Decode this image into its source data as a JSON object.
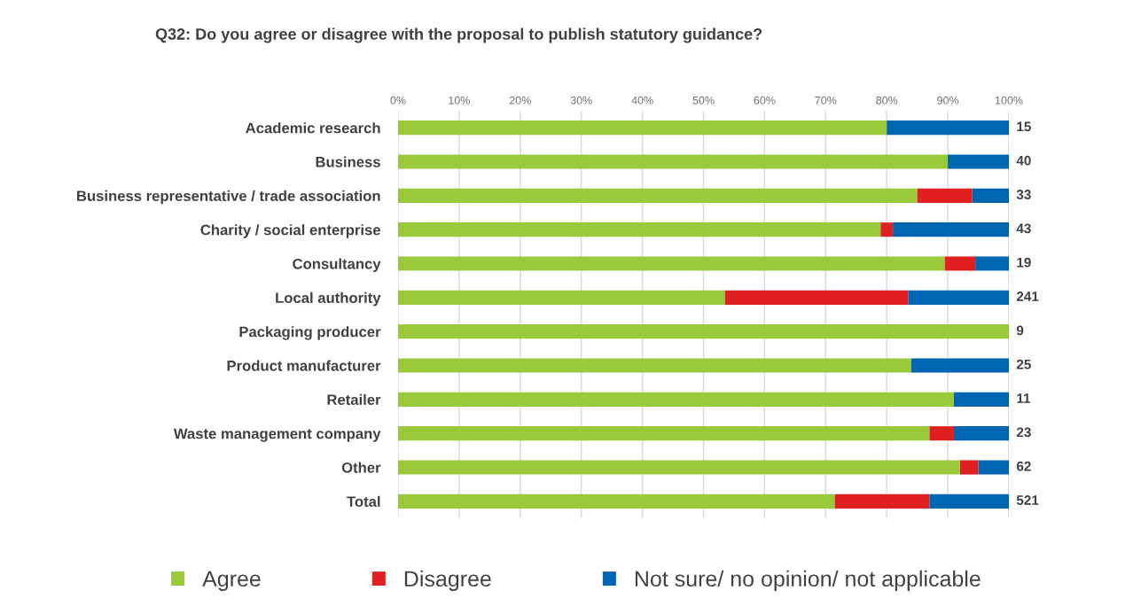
{
  "chart_data": {
    "type": "bar",
    "orientation": "horizontal",
    "stacked": true,
    "title": "Q32: Do you agree or disagree with the proposal to publish statutory guidance?",
    "categories": [
      "Academic research",
      "Business",
      "Business representative / trade association",
      "Charity / social enterprise",
      "Consultancy",
      "Local authority",
      "Packaging producer",
      "Product manufacturer",
      "Retailer",
      "Waste management company",
      "Other",
      "Total"
    ],
    "series": [
      {
        "name": "Agree",
        "color": "#9aca3c",
        "values": [
          80,
          90,
          85,
          79,
          89.5,
          53.5,
          100,
          84,
          91,
          87,
          92,
          71.5
        ]
      },
      {
        "name": "Disagree",
        "color": "#e02020",
        "values": [
          0,
          0,
          9,
          2,
          5,
          30,
          0,
          0,
          0,
          4,
          3,
          15.5
        ]
      },
      {
        "name": "Not sure/ no opinion/ not applicable",
        "color": "#0066b3",
        "values": [
          20,
          10,
          6,
          19,
          5.5,
          16.5,
          0,
          16,
          9,
          9,
          5,
          13
        ]
      }
    ],
    "xlim": [
      0,
      100
    ],
    "xticks": [
      {
        "value": 0,
        "label": "0%"
      },
      {
        "value": 10,
        "label": "10%"
      },
      {
        "value": 20,
        "label": "20%"
      },
      {
        "value": 30,
        "label": "30%"
      },
      {
        "value": 40,
        "label": "40%"
      },
      {
        "value": 50,
        "label": "50%"
      },
      {
        "value": 60,
        "label": "60%"
      },
      {
        "value": 70,
        "label": "70%"
      },
      {
        "value": 80,
        "label": "80%"
      },
      {
        "value": 90,
        "label": "90%"
      },
      {
        "value": 100,
        "label": "100%"
      }
    ],
    "annotations": [
      "15",
      "40",
      "33",
      "43",
      "19",
      "241",
      "9",
      "25",
      "11",
      "23",
      "62",
      "521"
    ],
    "grid": "x",
    "legend": "bottom"
  }
}
